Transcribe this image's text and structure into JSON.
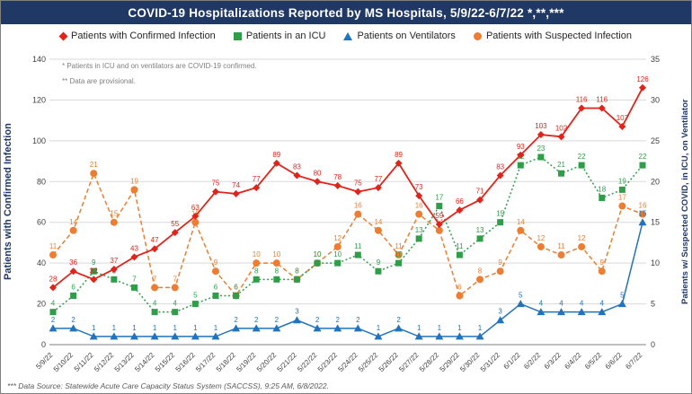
{
  "header": {
    "title": "COVID-19 Hospitalizations Reported by MS Hospitals, 5/9/22-6/7/22 *,**,***",
    "background_color": "#1F3864"
  },
  "notes": [
    "* Patients in ICU and on ventilators are COVID-19 confirmed.",
    "** Data are provisional."
  ],
  "axes": {
    "left_title": "Patients with Confirmed Infection",
    "right_title": "Patients w/ Suspected COVID, in ICU, on Ventilator",
    "left_ticks": [
      0,
      20,
      40,
      60,
      80,
      100,
      120,
      140
    ],
    "right_ticks": [
      0,
      5,
      10,
      15,
      20,
      25,
      30,
      35
    ]
  },
  "footer": {
    "text": "*** Data Source: Statewide Acute Care Capacity Status System (SACCSS), 9:25 AM, 6/8/2022."
  },
  "chart_data": {
    "type": "line",
    "title": "COVID-19 Hospitalizations Reported by MS Hospitals, 5/9/22-6/7/22 *,**,***",
    "x": [
      "5/9/22",
      "5/10/22",
      "5/11/22",
      "5/12/22",
      "5/13/22",
      "5/14/22",
      "5/15/22",
      "5/16/22",
      "5/17/22",
      "5/18/22",
      "5/19/22",
      "5/20/22",
      "5/21/22",
      "5/22/22",
      "5/23/22",
      "5/24/22",
      "5/25/22",
      "5/26/22",
      "5/27/22",
      "5/28/22",
      "5/29/22",
      "5/30/22",
      "5/31/22",
      "6/1/22",
      "6/2/22",
      "6/3/22",
      "6/4/22",
      "6/5/22",
      "6/6/22",
      "6/7/22"
    ],
    "left_axis": {
      "min": 0,
      "max": 140,
      "step": 20
    },
    "right_axis": {
      "min": 0,
      "max": 35,
      "step": 5
    },
    "grid": true,
    "legend_position": "top",
    "series": [
      {
        "key": "confirmed",
        "name": "Patients with Confirmed Infection",
        "axis": "left",
        "color": "#E2231A",
        "marker": "diamond",
        "line": "solid",
        "values": [
          28,
          36,
          32,
          37,
          43,
          47,
          55,
          63,
          75,
          74,
          77,
          89,
          83,
          80,
          78,
          75,
          77,
          89,
          73,
          59,
          66,
          71,
          83,
          93,
          103,
          102,
          116,
          116,
          107,
          126
        ]
      },
      {
        "key": "icu",
        "name": "Patients in an ICU",
        "axis": "right",
        "color": "#2E9E49",
        "marker": "square",
        "line": "dotted",
        "values": [
          4,
          6,
          9,
          8,
          7,
          4,
          4,
          5,
          6,
          6,
          8,
          8,
          8,
          10,
          10,
          11,
          9,
          10,
          13,
          17,
          11,
          13,
          15,
          22,
          23,
          21,
          22,
          18,
          19,
          22
        ]
      },
      {
        "key": "ventilators",
        "name": "Patients on Ventilators",
        "axis": "right",
        "color": "#2073BC",
        "marker": "triangle",
        "line": "solid",
        "values": [
          2,
          2,
          1,
          1,
          1,
          1,
          1,
          1,
          1,
          2,
          2,
          2,
          3,
          2,
          2,
          2,
          1,
          2,
          1,
          1,
          1,
          1,
          3,
          5,
          4,
          4,
          4,
          4,
          5,
          15
        ]
      },
      {
        "key": "suspected",
        "name": "Patients with Suspected Infection",
        "axis": "right",
        "color": "#ED7D31",
        "marker": "circle",
        "line": "dashed",
        "values": [
          11,
          14,
          21,
          15,
          19,
          7,
          7,
          15,
          9,
          6,
          10,
          10,
          8,
          10,
          12,
          16,
          14,
          11,
          16,
          14,
          6,
          8,
          9,
          14,
          12,
          11,
          12,
          9,
          17,
          16
        ]
      }
    ]
  }
}
